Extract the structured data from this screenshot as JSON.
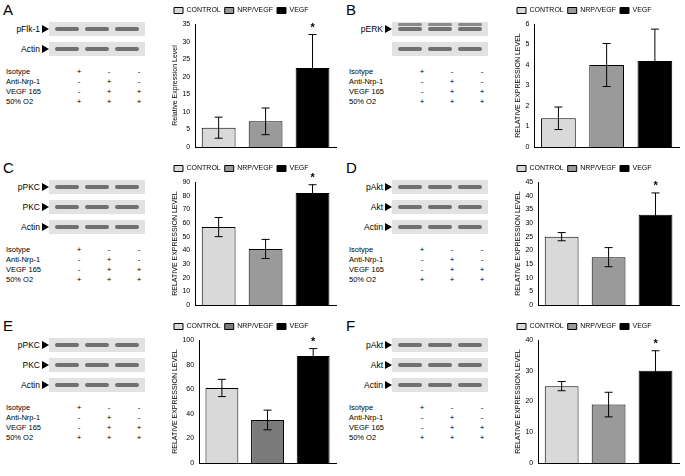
{
  "chart_data": [
    {
      "type": "bar",
      "y_label": "Relative Expression Level",
      "categories": [
        "CONTROL",
        "NRP/VEGF",
        "VEGF"
      ],
      "values": [
        5.5,
        7.3,
        22.5
      ],
      "errors": [
        3,
        3.8,
        9.5
      ],
      "significance": [
        null,
        null,
        "*"
      ],
      "colors": [
        "#d9d9d9",
        "#9a9a9a",
        "#000000"
      ],
      "ylim": [
        0,
        35
      ],
      "yticks": [
        0,
        5,
        10,
        15,
        20,
        25,
        30,
        35
      ],
      "grid": false,
      "legend": "upper left",
      "tick_labels": "y"
    },
    {
      "type": "bar",
      "y_label": "RELATIVE EXPRESSION LEVEL",
      "categories": [
        "CONTROL",
        "NRP/VEGF",
        "VEGF"
      ],
      "values": [
        1.4,
        4.0,
        4.2
      ],
      "errors": [
        0.55,
        1.05,
        1.55
      ],
      "significance": [
        null,
        null,
        null
      ],
      "colors": [
        "#d9d9d9",
        "#9a9a9a",
        "#000000"
      ],
      "ylim": [
        0,
        6
      ],
      "yticks": [
        0,
        1,
        2,
        3,
        4,
        5,
        6
      ],
      "grid": false,
      "legend": "upper left",
      "tick_labels": "y"
    },
    {
      "type": "bar",
      "y_label": "RELATIVE EXPRESSION LEVEL",
      "categories": [
        "CONTROL",
        "NRP/VEGF",
        "VEGF"
      ],
      "values": [
        57,
        41,
        82
      ],
      "errors": [
        7,
        7,
        6
      ],
      "significance": [
        null,
        null,
        "*"
      ],
      "colors": [
        "#d9d9d9",
        "#9a9a9a",
        "#000000"
      ],
      "ylim": [
        0,
        90
      ],
      "yticks": [
        0,
        10,
        20,
        30,
        40,
        50,
        60,
        70,
        80,
        90
      ],
      "grid": false,
      "legend": "upper left",
      "tick_labels": "y"
    },
    {
      "type": "bar",
      "y_label": "RELATIVE EXPRESSION LEVEL",
      "categories": [
        "CONTROL",
        "NRP/VEGF",
        "VEGF"
      ],
      "values": [
        25,
        17.5,
        33
      ],
      "errors": [
        1.5,
        3.5,
        8
      ],
      "significance": [
        null,
        null,
        "*"
      ],
      "colors": [
        "#d9d9d9",
        "#9a9a9a",
        "#000000"
      ],
      "ylim": [
        0,
        45
      ],
      "yticks": [
        0,
        5,
        10,
        15,
        20,
        25,
        30,
        35,
        40,
        45
      ],
      "grid": false,
      "legend": "upper left",
      "tick_labels": "y"
    },
    {
      "type": "bar",
      "y_label": "RELATIVE EXPRESSION LEVEL",
      "categories": [
        "CONTROL",
        "NRP/VEGF",
        "VEGF"
      ],
      "values": [
        61,
        35,
        87
      ],
      "errors": [
        7,
        8,
        6
      ],
      "significance": [
        null,
        null,
        "*"
      ],
      "colors": [
        "#d9d9d9",
        "#7a7a7a",
        "#000000"
      ],
      "ylim": [
        0,
        100
      ],
      "yticks": [
        0,
        20,
        40,
        60,
        80,
        100
      ],
      "grid": false,
      "legend": "upper left",
      "tick_labels": "y"
    },
    {
      "type": "bar",
      "y_label": "RELATIVE EXPRESSION LEVEL",
      "categories": [
        "CONTROL",
        "NRP/VEGF",
        "VEGF"
      ],
      "values": [
        25,
        19,
        30
      ],
      "errors": [
        1.5,
        4,
        6.5
      ],
      "significance": [
        null,
        null,
        "*"
      ],
      "colors": [
        "#d9d9d9",
        "#9a9a9a",
        "#000000"
      ],
      "ylim": [
        0,
        40
      ],
      "yticks": [
        0,
        10,
        20,
        30,
        40
      ],
      "grid": false,
      "legend": "upper left",
      "tick_labels": "y"
    }
  ],
  "figure": {
    "panels": [
      {
        "letter": "A",
        "blot_rows": [
          "pFlk-1",
          "Actin"
        ],
        "conditions": [
          {
            "label": "Isotype",
            "signs": [
              "+",
              "-",
              "-"
            ]
          },
          {
            "label": "Anti-Nrp-1",
            "signs": [
              "-",
              "+",
              "-"
            ]
          },
          {
            "label": "VEGF 165",
            "signs": [
              "-",
              "+",
              "+"
            ]
          },
          {
            "label": "50% O2",
            "signs": [
              "+",
              "+",
              "+"
            ]
          }
        ]
      },
      {
        "letter": "B",
        "blot_rows": [
          "pERK",
          null
        ],
        "conditions": [
          {
            "label": "Isotype",
            "signs": [
              "+",
              "-",
              "-"
            ]
          },
          {
            "label": "Anti-Nrp-1",
            "signs": [
              "-",
              "+",
              "-"
            ]
          },
          {
            "label": "VEGF 165",
            "signs": [
              "-",
              "+",
              "+"
            ]
          },
          {
            "label": "50% O2",
            "signs": [
              "+",
              "+",
              "+"
            ]
          }
        ]
      },
      {
        "letter": "C",
        "blot_rows": [
          "pPKC",
          "PKC",
          "Actin"
        ],
        "conditions": [
          {
            "label": "Isotype",
            "signs": [
              "+",
              "-",
              "-"
            ]
          },
          {
            "label": "Anti-Nrp-1",
            "signs": [
              "-",
              "+",
              "-"
            ]
          },
          {
            "label": "VEGF 165",
            "signs": [
              "-",
              "+",
              "+"
            ]
          },
          {
            "label": "50% O2",
            "signs": [
              "+",
              "+",
              "+"
            ]
          }
        ]
      },
      {
        "letter": "D",
        "blot_rows": [
          "pAkt",
          "Akt",
          "Actin"
        ],
        "conditions": [
          {
            "label": "Isotype",
            "signs": [
              "+",
              "-",
              "-"
            ]
          },
          {
            "label": "Anti-Nrp-1",
            "signs": [
              "-",
              "+",
              "-"
            ]
          },
          {
            "label": "VEGF 165",
            "signs": [
              "-",
              "+",
              "+"
            ]
          },
          {
            "label": "50% O2",
            "signs": [
              "+",
              "+",
              "+"
            ]
          }
        ]
      },
      {
        "letter": "E",
        "blot_rows": [
          "pPKC",
          "PKC",
          "Actin"
        ],
        "conditions": [
          {
            "label": "Isotype",
            "signs": [
              "+",
              "-",
              "-"
            ]
          },
          {
            "label": "Anti-Nrp-1",
            "signs": [
              "-",
              "+",
              "-"
            ]
          },
          {
            "label": "VEGF 165",
            "signs": [
              "-",
              "+",
              "+"
            ]
          },
          {
            "label": "50% O2",
            "signs": [
              "+",
              "+",
              "+"
            ]
          }
        ]
      },
      {
        "letter": "F",
        "blot_rows": [
          "pAkt",
          "Akt",
          "Actin"
        ],
        "conditions": [
          {
            "label": "Isotype",
            "signs": [
              "+",
              "-",
              "-"
            ]
          },
          {
            "label": "Anti-Nrp-1",
            "signs": [
              "-",
              "+",
              "-"
            ]
          },
          {
            "label": "VEGF 165",
            "signs": [
              "-",
              "+",
              "+"
            ]
          },
          {
            "label": "50% O2",
            "signs": [
              "+",
              "+",
              "+"
            ]
          }
        ]
      }
    ]
  }
}
